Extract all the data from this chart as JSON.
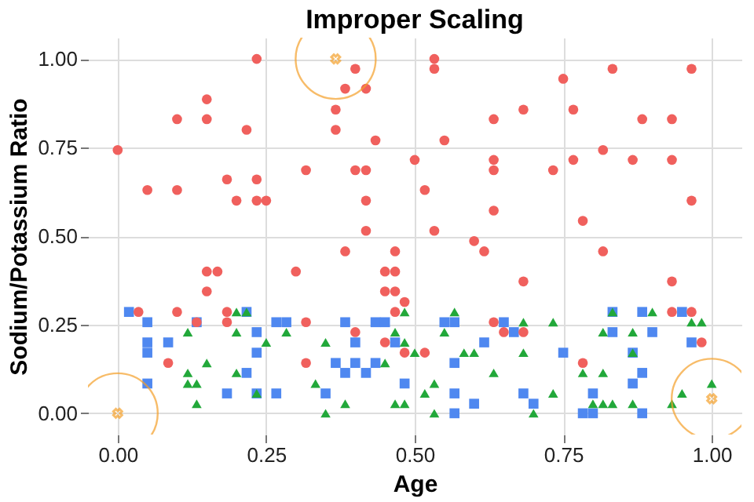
{
  "chart_data": {
    "type": "scatter",
    "title": "Improper Scaling",
    "xlabel": "Age",
    "ylabel": "Sodium/Potassium Ratio",
    "xlim": [
      -0.05,
      1.05
    ],
    "ylim": [
      -0.06,
      1.06
    ],
    "xticks": [
      {
        "value": 0,
        "label": "0.00"
      },
      {
        "value": 0.25,
        "label": "0.25"
      },
      {
        "value": 0.5,
        "label": "0.50"
      },
      {
        "value": 0.75,
        "label": "0.75"
      },
      {
        "value": 1,
        "label": "1.00"
      }
    ],
    "yticks": [
      {
        "value": 0,
        "label": "0.00"
      },
      {
        "value": 0.25,
        "label": "0.25"
      },
      {
        "value": 0.5,
        "label": "0.50"
      },
      {
        "value": 0.75,
        "label": "0.75"
      },
      {
        "value": 1,
        "label": "1.00"
      }
    ],
    "grid": true,
    "series": [
      {
        "color": "#4f88f0",
        "marker": "square",
        "x": [
          0.019,
          0.05,
          0.05,
          0.05,
          0.085,
          0.05,
          0.133,
          0.217,
          0.234,
          0.234,
          0.217,
          0.184,
          0.234,
          0.267,
          0.267,
          0.284,
          0.383,
          0.434,
          0.45,
          0.4,
          0.467,
          0.367,
          0.4,
          0.434,
          0.383,
          0.418,
          0.35,
          0.483,
          0.55,
          0.567,
          0.65,
          0.667,
          0.617,
          0.567,
          0.567,
          0.6,
          0.567,
          0.683,
          0.7,
          0.75,
          0.833,
          0.883,
          0.95,
          0.833,
          0.9,
          0.966,
          0.867,
          0.883,
          0.867,
          0.8,
          0.783,
          0.8,
          0.883
        ],
        "values": [
          0.286,
          0.257,
          0.2,
          0.171,
          0.2,
          0.084,
          0.257,
          0.286,
          0.229,
          0.171,
          0.114,
          0.056,
          0.056,
          0.056,
          0.257,
          0.257,
          0.257,
          0.257,
          0.257,
          0.2,
          0.2,
          0.142,
          0.142,
          0.142,
          0.114,
          0.114,
          0.056,
          0.084,
          0.257,
          0.257,
          0.257,
          0.229,
          0.2,
          0.142,
          0.056,
          0.027,
          0,
          0.056,
          0.027,
          0.171,
          0.286,
          0.286,
          0.286,
          0.229,
          0.229,
          0.2,
          0.171,
          0.114,
          0.084,
          0.056,
          0,
          0,
          0
        ]
      },
      {
        "color": "#f0605d",
        "marker": "circle",
        "x": [
          0,
          0.05,
          0.1,
          0.1,
          0.15,
          0.15,
          0.217,
          0.234,
          0.184,
          0.234,
          0.2,
          0.234,
          0.25,
          0.317,
          0.367,
          0.367,
          0.4,
          0.383,
          0.418,
          0.434,
          0.4,
          0.418,
          0.418,
          0.418,
          0.5,
          0.533,
          0.533,
          0.75,
          0.833,
          0.966,
          0.633,
          0.683,
          0.767,
          0.883,
          0.933,
          0.55,
          0.633,
          0.633,
          0.767,
          0.817,
          0.867,
          0.933,
          0.733,
          0.517,
          0.966,
          0.633,
          0.783,
          0.533,
          0.383,
          0.467,
          0.15,
          0.168,
          0.3,
          0.45,
          0.467,
          0.15,
          0.45,
          0.467,
          0.483,
          0.035,
          0.1,
          0.184,
          0.467,
          0.133,
          0.184,
          0.317,
          0.4,
          0.45,
          0.085,
          0.317,
          0.483,
          0.6,
          0.617,
          0.683,
          0.817,
          0.933,
          0.633,
          0.65,
          0.683,
          0.517,
          0.783,
          0.933,
          0.966,
          0.983
        ],
        "values": [
          0.743,
          0.63,
          0.63,
          0.83,
          0.886,
          0.83,
          0.8,
          1.0,
          0.66,
          0.66,
          0.6,
          0.6,
          0.6,
          0.686,
          0.857,
          0.8,
          0.972,
          0.916,
          0.916,
          0.77,
          0.686,
          0.686,
          0.6,
          0.515,
          0.715,
          1.0,
          0.972,
          0.944,
          0.972,
          0.972,
          0.83,
          0.857,
          0.857,
          0.83,
          0.83,
          0.77,
          0.715,
          0.686,
          0.715,
          0.743,
          0.715,
          0.715,
          0.686,
          0.63,
          0.6,
          0.572,
          0.543,
          0.515,
          0.457,
          0.457,
          0.4,
          0.4,
          0.4,
          0.4,
          0.4,
          0.344,
          0.344,
          0.344,
          0.314,
          0.286,
          0.286,
          0.286,
          0.286,
          0.257,
          0.257,
          0.257,
          0.229,
          0.2,
          0.142,
          0.142,
          0.171,
          0.486,
          0.457,
          0.372,
          0.457,
          0.372,
          0.257,
          0.229,
          0.229,
          0.171,
          0.142,
          0.286,
          0.286,
          0.2
        ]
      },
      {
        "color": "#22a83a",
        "marker": "triangle",
        "x": [
          0.118,
          0.15,
          0.118,
          0.118,
          0.133,
          0.133,
          0.2,
          0.217,
          0.2,
          0.2,
          0.234,
          0.25,
          0.284,
          0.35,
          0.333,
          0.35,
          0.383,
          0.45,
          0.467,
          0.483,
          0.467,
          0.483,
          0.483,
          0.567,
          0.55,
          0.5,
          0.583,
          0.6,
          0.683,
          0.733,
          0.683,
          0.633,
          0.533,
          0.517,
          0.533,
          0.7,
          0.733,
          0.783,
          0.817,
          0.8,
          0.817,
          0.833,
          0.867,
          0.833,
          0.9,
          0.817,
          0.867,
          0.867,
          0.966,
          0.983,
          0.933,
          0.95,
          1.0
        ],
        "values": [
          0.229,
          0.142,
          0.114,
          0.084,
          0.084,
          0.027,
          0.286,
          0.286,
          0.229,
          0.114,
          0.056,
          0.2,
          0.229,
          0.2,
          0.084,
          0,
          0.027,
          0.142,
          0.229,
          0.2,
          0.027,
          0.027,
          0.286,
          0.286,
          0.229,
          0.171,
          0.171,
          0.171,
          0.257,
          0.257,
          0.171,
          0.114,
          0.084,
          0.056,
          0,
          0,
          0.056,
          0.114,
          0.114,
          0.027,
          0.027,
          0.027,
          0.027,
          0.286,
          0.286,
          0.229,
          0.229,
          0.171,
          0.257,
          0.257,
          0.027,
          0.056,
          0.084
        ]
      },
      {
        "color": "#f5a02a",
        "marker": "cross",
        "x": [
          0,
          0.367,
          1.0
        ],
        "values": [
          0,
          1.0,
          0.041
        ]
      }
    ]
  }
}
